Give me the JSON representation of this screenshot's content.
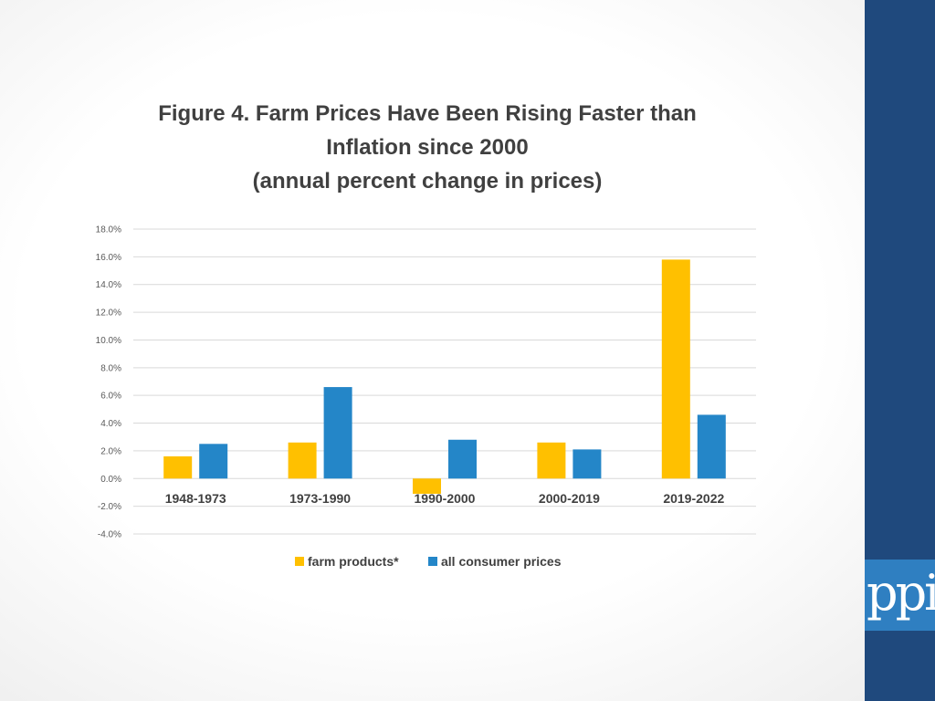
{
  "slide": {
    "logo_text": "ppi",
    "colors": {
      "band": "#1f497d",
      "logo_bg": "#2f7fc1"
    }
  },
  "chart_data": {
    "type": "bar",
    "title_lines": [
      "Figure 4. Farm Prices Have Been Rising Faster than",
      "Inflation since 2000",
      "(annual percent change in prices)"
    ],
    "categories": [
      "1948-1973",
      "1973-1990",
      "1990-2000",
      "2000-2019",
      "2019-2022"
    ],
    "series": [
      {
        "name": "farm products*",
        "color": "#ffc000",
        "values": [
          1.6,
          2.6,
          -1.1,
          2.6,
          15.8
        ]
      },
      {
        "name": "all consumer prices",
        "color": "#2486c8",
        "values": [
          2.5,
          6.6,
          2.8,
          2.1,
          4.6
        ]
      }
    ],
    "ylim": [
      -4,
      18
    ],
    "ytick_step": 2,
    "ytick_labels": [
      "-4.0%",
      "-2.0%",
      "0.0%",
      "2.0%",
      "4.0%",
      "6.0%",
      "8.0%",
      "10.0%",
      "12.0%",
      "14.0%",
      "16.0%",
      "18.0%"
    ],
    "grid": true,
    "legend_position": "bottom"
  }
}
